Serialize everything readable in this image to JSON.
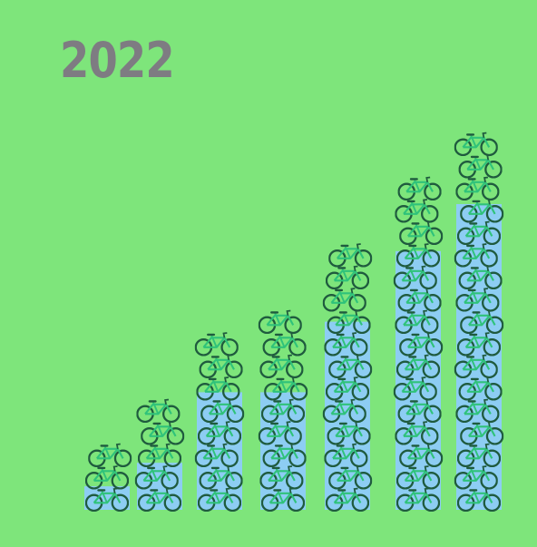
{
  "chart_data": {
    "type": "bar",
    "title": "2022",
    "categories": [
      "",
      "",
      "",
      "",
      "",
      "",
      ""
    ],
    "values": [
      1,
      2,
      5,
      5,
      8,
      11,
      13
    ],
    "stack_counts": [
      3,
      5,
      8,
      9,
      12,
      15,
      17
    ],
    "ylim": [
      0,
      13
    ],
    "grid": false,
    "legend": "none",
    "colors": {
      "background": "#7ee57b",
      "bar": "#8dcdf3",
      "icon_frame": "#2fc27a",
      "icon_wheel": "#1f5b3e",
      "title": "#7e7c82"
    },
    "icon": "bicycle-icon"
  }
}
